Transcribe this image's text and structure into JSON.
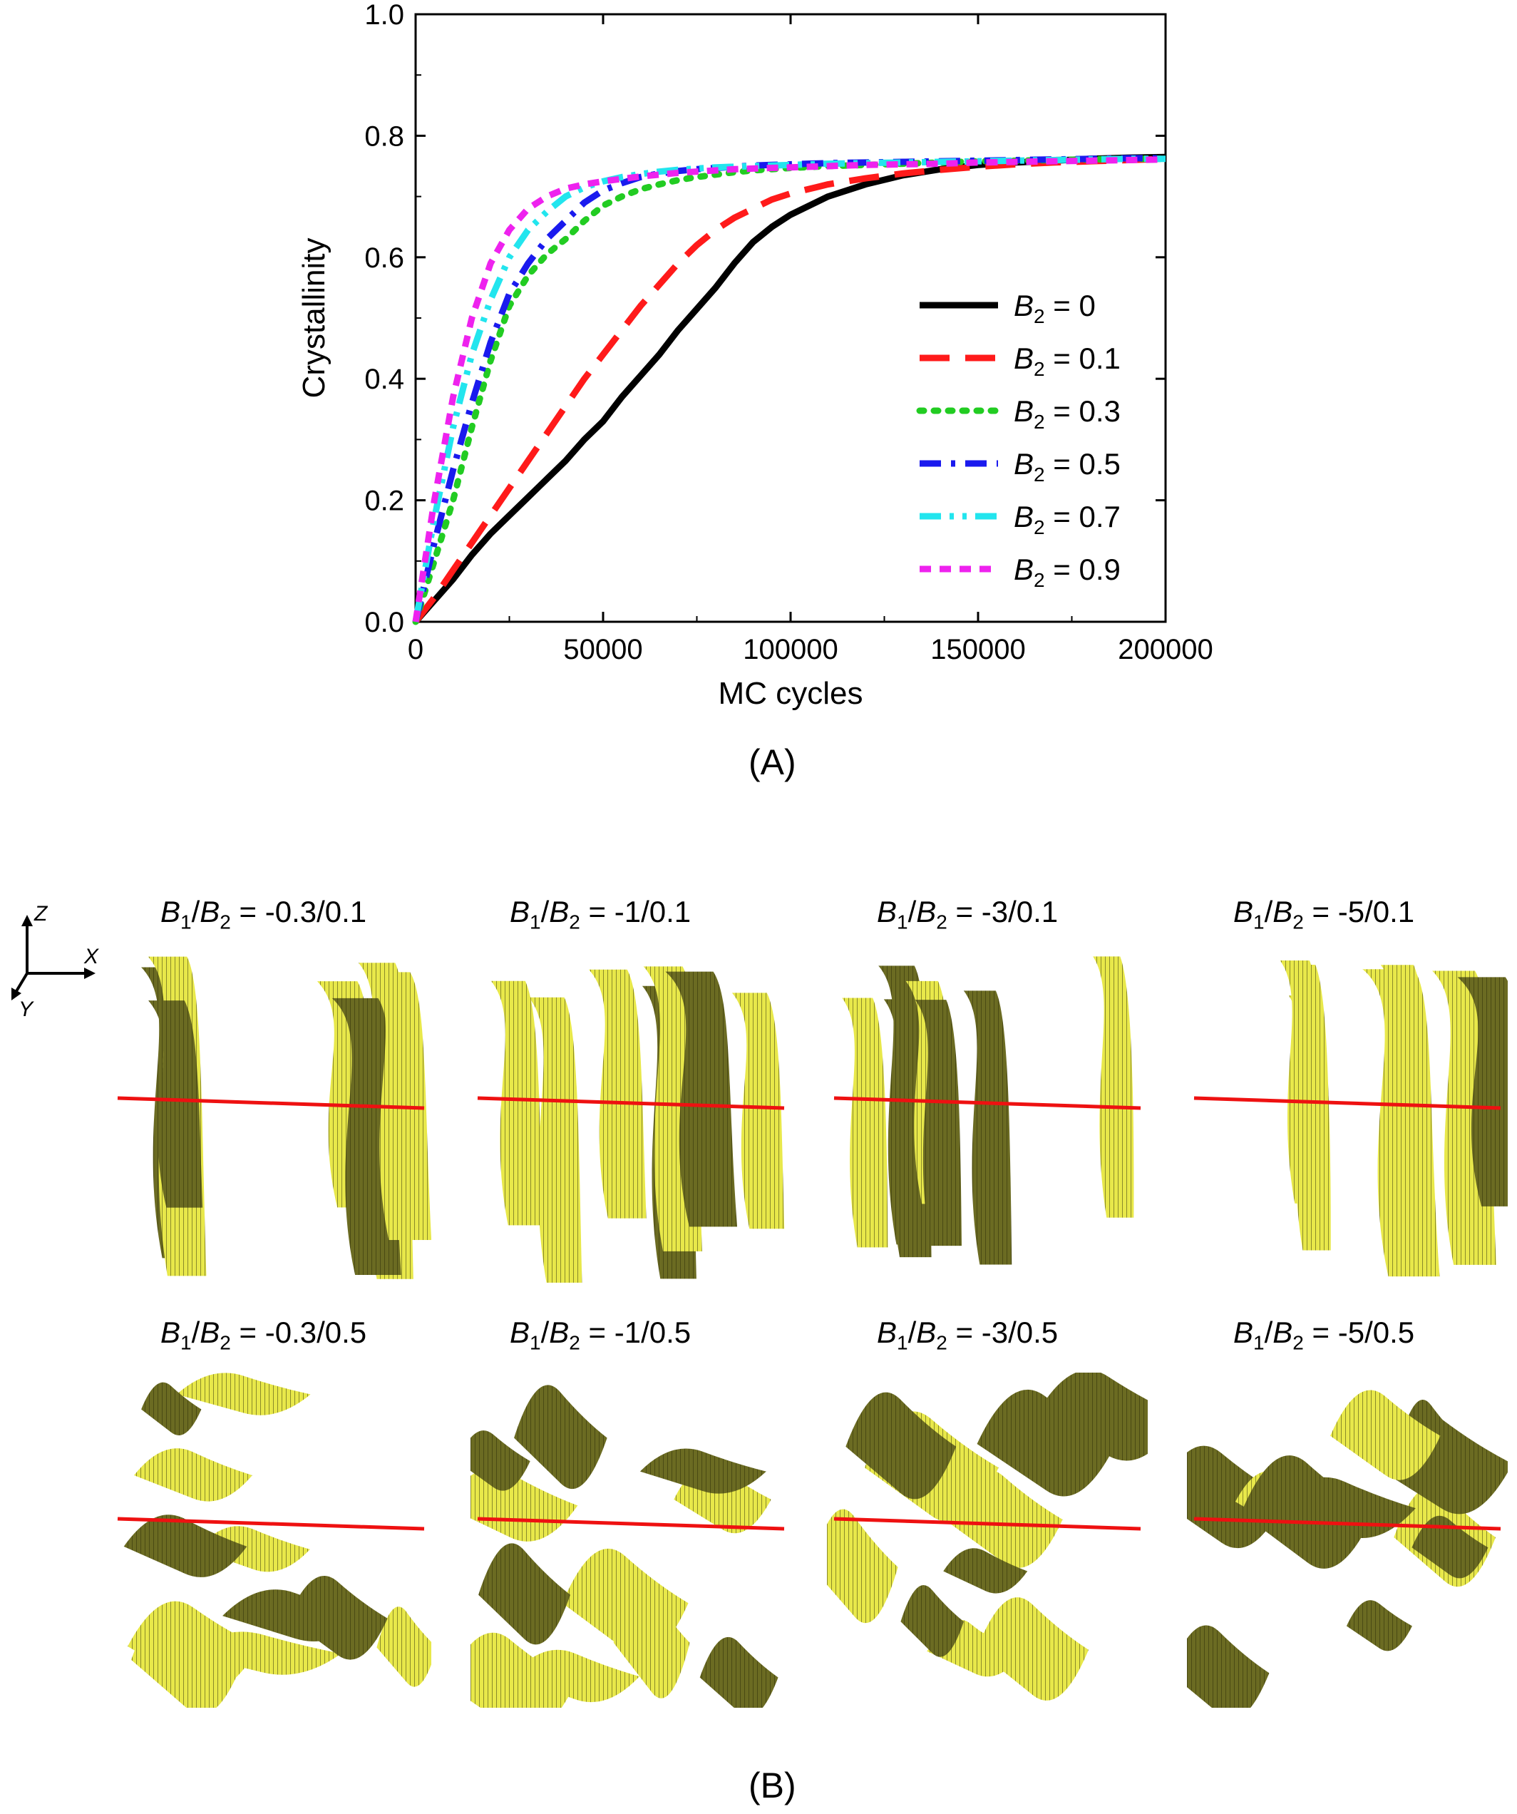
{
  "panel_labels": {
    "a": "(A)",
    "b": "(B)"
  },
  "chart_data": {
    "type": "line",
    "title": "",
    "xlabel": "MC cycles",
    "ylabel": "Crystallinity",
    "xlim": [
      0,
      200000
    ],
    "ylim": [
      0.0,
      1.0
    ],
    "xticks": [
      0,
      50000,
      100000,
      150000,
      200000
    ],
    "yticks": [
      0.0,
      0.2,
      0.4,
      0.6,
      0.8,
      1.0
    ],
    "xtick_labels": [
      "0",
      "50000",
      "100000",
      "150000",
      "200000"
    ],
    "ytick_labels": [
      "0.0",
      "0.2",
      "0.4",
      "0.6",
      "0.8",
      "1.0"
    ],
    "grid": false,
    "legend_position": "right-center",
    "x": [
      0,
      5000,
      10000,
      15000,
      20000,
      25000,
      30000,
      35000,
      40000,
      45000,
      50000,
      55000,
      60000,
      65000,
      70000,
      75000,
      80000,
      85000,
      90000,
      95000,
      100000,
      110000,
      120000,
      130000,
      140000,
      150000,
      160000,
      170000,
      180000,
      190000,
      200000
    ],
    "series": [
      {
        "name_prefix": "B",
        "name_sub": "2",
        "name_suffix": " = 0",
        "color": "#000000",
        "dash": "solid",
        "values": [
          0.0,
          0.035,
          0.07,
          0.11,
          0.145,
          0.175,
          0.205,
          0.235,
          0.265,
          0.3,
          0.33,
          0.37,
          0.405,
          0.44,
          0.48,
          0.515,
          0.55,
          0.59,
          0.625,
          0.65,
          0.67,
          0.7,
          0.72,
          0.735,
          0.745,
          0.752,
          0.756,
          0.759,
          0.762,
          0.764,
          0.765
        ]
      },
      {
        "name_prefix": "B",
        "name_sub": "2",
        "name_suffix": " = 0.1",
        "color": "#ff1a1a",
        "dash": "longdash",
        "values": [
          0.0,
          0.04,
          0.085,
          0.13,
          0.175,
          0.22,
          0.265,
          0.31,
          0.355,
          0.4,
          0.44,
          0.48,
          0.52,
          0.555,
          0.59,
          0.62,
          0.645,
          0.665,
          0.68,
          0.695,
          0.705,
          0.72,
          0.73,
          0.738,
          0.744,
          0.749,
          0.753,
          0.756,
          0.758,
          0.76,
          0.762
        ]
      },
      {
        "name_prefix": "B",
        "name_sub": "2",
        "name_suffix": " = 0.3",
        "color": "#22cc22",
        "dash": "dot",
        "values": [
          0.0,
          0.1,
          0.2,
          0.32,
          0.43,
          0.52,
          0.57,
          0.605,
          0.63,
          0.66,
          0.685,
          0.7,
          0.712,
          0.72,
          0.727,
          0.732,
          0.736,
          0.74,
          0.743,
          0.745,
          0.747,
          0.75,
          0.752,
          0.754,
          0.756,
          0.758,
          0.759,
          0.76,
          0.761,
          0.762,
          0.762
        ]
      },
      {
        "name_prefix": "B",
        "name_sub": "2",
        "name_suffix": " = 0.5",
        "color": "#1a1aee",
        "dash": "dashdot",
        "values": [
          0.0,
          0.13,
          0.25,
          0.36,
          0.46,
          0.54,
          0.59,
          0.63,
          0.66,
          0.69,
          0.71,
          0.722,
          0.732,
          0.738,
          0.742,
          0.745,
          0.747,
          0.749,
          0.751,
          0.752,
          0.753,
          0.755,
          0.756,
          0.757,
          0.758,
          0.759,
          0.76,
          0.761,
          0.762,
          0.763,
          0.763
        ]
      },
      {
        "name_prefix": "B",
        "name_sub": "2",
        "name_suffix": " = 0.7",
        "color": "#22e5ee",
        "dash": "dashdotdot",
        "values": [
          0.0,
          0.17,
          0.32,
          0.44,
          0.53,
          0.6,
          0.645,
          0.675,
          0.7,
          0.715,
          0.725,
          0.732,
          0.737,
          0.741,
          0.744,
          0.746,
          0.748,
          0.749,
          0.75,
          0.751,
          0.752,
          0.754,
          0.755,
          0.756,
          0.757,
          0.758,
          0.759,
          0.76,
          0.761,
          0.762,
          0.762
        ]
      },
      {
        "name_prefix": "B",
        "name_sub": "2",
        "name_suffix": " = 0.9",
        "color": "#ee22ee",
        "dash": "shortdash",
        "values": [
          0.0,
          0.2,
          0.37,
          0.5,
          0.59,
          0.645,
          0.68,
          0.7,
          0.713,
          0.72,
          0.725,
          0.729,
          0.733,
          0.736,
          0.739,
          0.741,
          0.743,
          0.745,
          0.746,
          0.747,
          0.748,
          0.75,
          0.752,
          0.753,
          0.754,
          0.756,
          0.757,
          0.758,
          0.759,
          0.76,
          0.761
        ]
      }
    ]
  },
  "axes_indicator": {
    "z": "Z",
    "x": "X",
    "y": "Y"
  },
  "simulations": [
    {
      "row": 0,
      "col": 0,
      "label_suffix": " = -0.3/0.1"
    },
    {
      "row": 0,
      "col": 1,
      "label_suffix": " = -1/0.1"
    },
    {
      "row": 0,
      "col": 2,
      "label_suffix": " = -3/0.1"
    },
    {
      "row": 0,
      "col": 3,
      "label_suffix": " = -5/0.1"
    },
    {
      "row": 1,
      "col": 0,
      "label_suffix": " = -0.3/0.5"
    },
    {
      "row": 1,
      "col": 1,
      "label_suffix": " = -1/0.5"
    },
    {
      "row": 1,
      "col": 2,
      "label_suffix": " = -3/0.5"
    },
    {
      "row": 1,
      "col": 3,
      "label_suffix": " = -5/0.5"
    }
  ],
  "sim_label_parts": {
    "b1": "B",
    "b1_sub": "1",
    "slash": "/",
    "b2": "B",
    "b2_sub": "2"
  },
  "colors": {
    "isosurface": "#e8e84a",
    "isosurface_dark": "#4a4a14",
    "interface_line": "#ee1111"
  }
}
